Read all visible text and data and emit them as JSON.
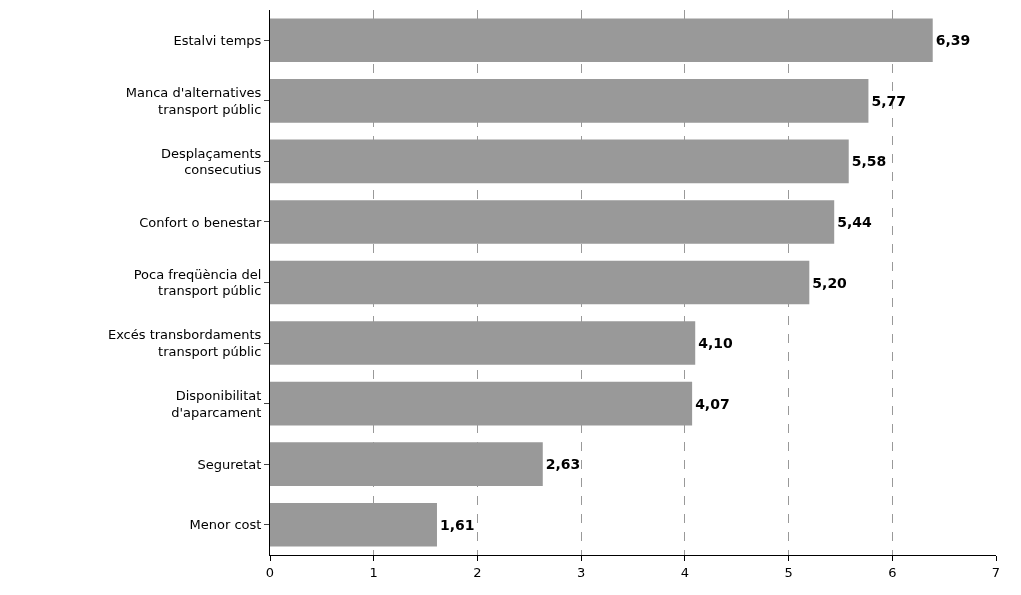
{
  "chart_data": {
    "type": "bar",
    "orientation": "horizontal",
    "categories": [
      "Estalvi temps",
      "Manca d'alternatives\ntransport públic",
      "Desplaçaments\nconsecutius",
      "Confort o benestar",
      "Poca freqüència del\ntransport públic",
      "Excés transbordaments\ntransport públic",
      "Disponibilitat\nd'aparcament",
      "Seguretat",
      "Menor cost"
    ],
    "values": [
      6.39,
      5.77,
      5.58,
      5.44,
      5.2,
      4.1,
      4.07,
      2.63,
      1.61
    ],
    "value_labels": [
      "6,39",
      "5,77",
      "5,58",
      "5,44",
      "5,20",
      "4,10",
      "4,07",
      "2,63",
      "1,61"
    ],
    "color": "#999999",
    "xlim": [
      0,
      7
    ],
    "xticks": [
      0,
      1,
      2,
      3,
      4,
      5,
      6,
      7
    ],
    "grid": "x",
    "legend": false
  }
}
